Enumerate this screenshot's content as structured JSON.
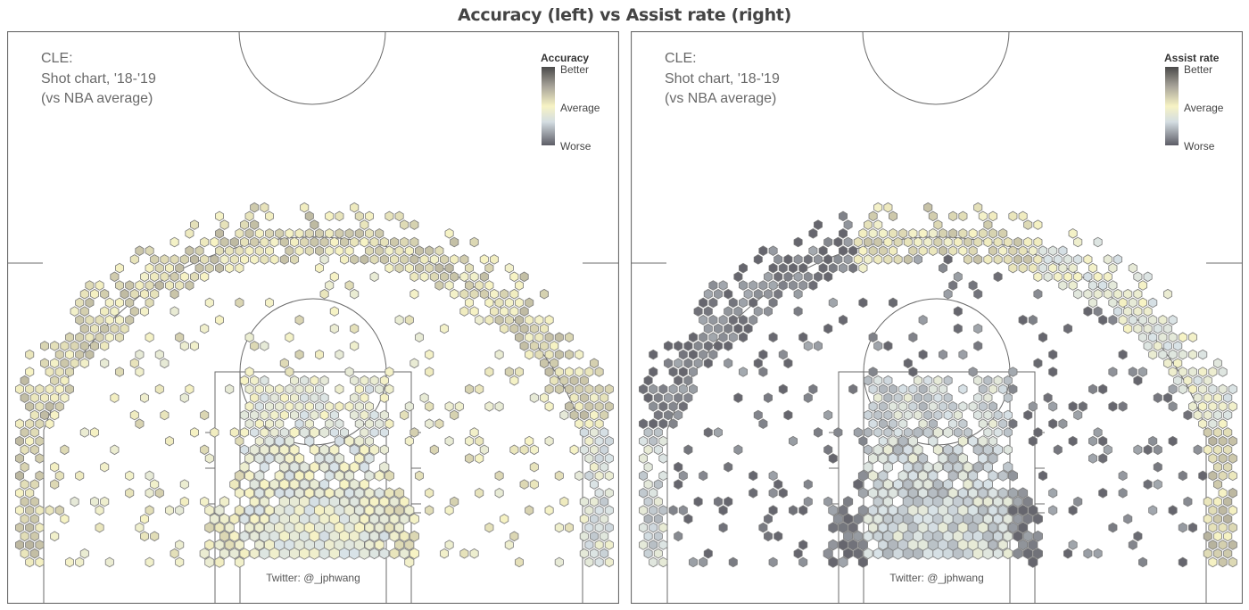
{
  "figure_title": "Accuracy (left) vs Assist rate (right)",
  "colors": {
    "better": "#555555",
    "average": "#f7f3c4",
    "worse": "#6d6d74",
    "line": "#6b6b6b"
  },
  "chart_data": [
    {
      "type": "hexbin",
      "panel": "left",
      "title_lines": [
        "CLE:",
        "Shot chart, '18-'19",
        "(vs NBA average)"
      ],
      "colorbar": {
        "title": "Accuracy",
        "labels": [
          "Better",
          "Average",
          "Worse"
        ],
        "range": [
          -1,
          1
        ]
      },
      "credit": "Twitter: @_jphwang",
      "region_values": {
        "paint": -0.2,
        "midrange": 0.0,
        "above_break_three": 0.15,
        "left_corner_three": 0.2,
        "right_corner_three": -0.3
      }
    },
    {
      "type": "hexbin",
      "panel": "right",
      "title_lines": [
        "CLE:",
        "Shot chart, '18-'19",
        "(vs NBA average)"
      ],
      "colorbar": {
        "title": "Assist rate",
        "labels": [
          "Better",
          "Average",
          "Worse"
        ],
        "range": [
          -1,
          1
        ]
      },
      "credit": "Twitter: @_jphwang",
      "region_values": {
        "paint": -0.4,
        "midrange": -0.9,
        "above_break_three_left": -0.9,
        "above_break_three_center": 0.1,
        "above_break_three_right": -0.2,
        "left_corner_three": -0.4,
        "right_corner_three": 0.2
      }
    }
  ]
}
